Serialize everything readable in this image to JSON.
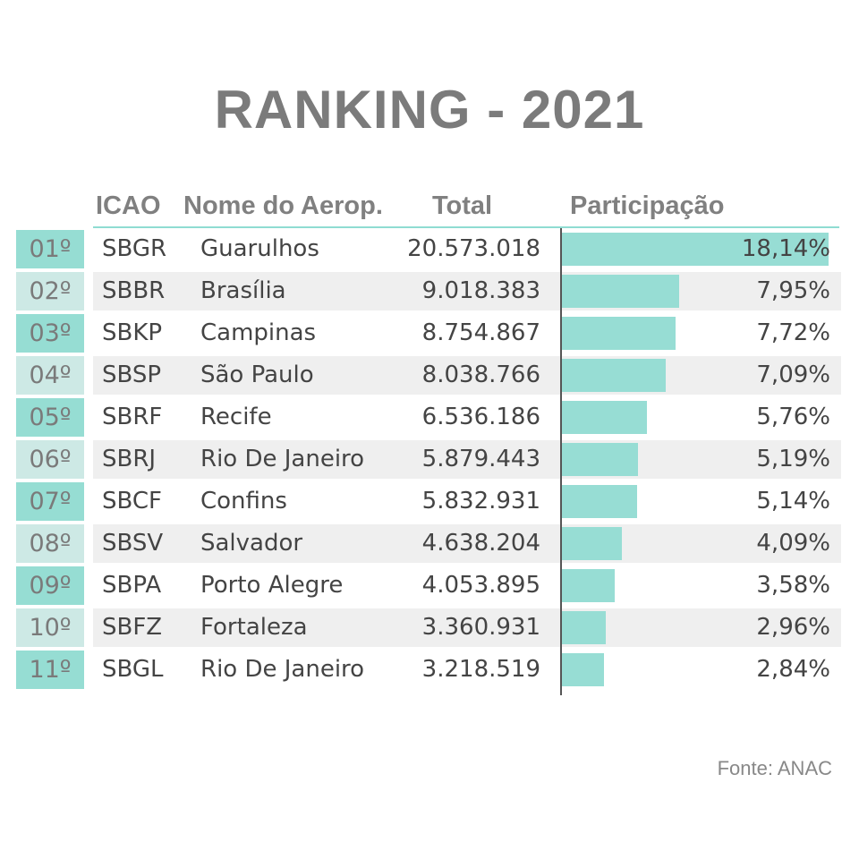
{
  "title": "RANKING - 2021",
  "headers": {
    "icao": "ICAO",
    "name": "Nome do Aerop.",
    "total": "Total",
    "share": "Participação"
  },
  "source": "Fonte: ANAC",
  "colors": {
    "bar": "#97ddd4",
    "rank_odd": "#96ddd3",
    "rank_even": "#cde9e5",
    "row_even": "#efefef",
    "title": "#7b7b7b"
  },
  "chart_data": {
    "type": "bar",
    "orientation": "horizontal",
    "categories": [
      "SBGR",
      "SBBR",
      "SBKP",
      "SBSP",
      "SBRF",
      "SBRJ",
      "SBCF",
      "SBSV",
      "SBPA",
      "SBFZ",
      "SBGL"
    ],
    "values": [
      18.14,
      7.95,
      7.72,
      7.09,
      5.76,
      5.19,
      5.14,
      4.09,
      3.58,
      2.96,
      2.84
    ],
    "xlim": [
      0,
      18.14
    ],
    "grid": false,
    "rows": [
      {
        "rank": "01º",
        "icao": "SBGR",
        "name": "Guarulhos",
        "total": "20.573.018",
        "share_label": "18,14%",
        "share": 18.14
      },
      {
        "rank": "02º",
        "icao": "SBBR",
        "name": "Brasília",
        "total": "9.018.383",
        "share_label": "7,95%",
        "share": 7.95
      },
      {
        "rank": "03º",
        "icao": "SBKP",
        "name": "Campinas",
        "total": "8.754.867",
        "share_label": "7,72%",
        "share": 7.72
      },
      {
        "rank": "04º",
        "icao": "SBSP",
        "name": "São Paulo",
        "total": "8.038.766",
        "share_label": "7,09%",
        "share": 7.09
      },
      {
        "rank": "05º",
        "icao": "SBRF",
        "name": "Recife",
        "total": "6.536.186",
        "share_label": "5,76%",
        "share": 5.76
      },
      {
        "rank": "06º",
        "icao": "SBRJ",
        "name": "Rio De Janeiro",
        "total": "5.879.443",
        "share_label": "5,19%",
        "share": 5.19
      },
      {
        "rank": "07º",
        "icao": "SBCF",
        "name": "Confins",
        "total": "5.832.931",
        "share_label": "5,14%",
        "share": 5.14
      },
      {
        "rank": "08º",
        "icao": "SBSV",
        "name": "Salvador",
        "total": "4.638.204",
        "share_label": "4,09%",
        "share": 4.09
      },
      {
        "rank": "09º",
        "icao": "SBPA",
        "name": "Porto Alegre",
        "total": "4.053.895",
        "share_label": "3,58%",
        "share": 3.58
      },
      {
        "rank": "10º",
        "icao": "SBFZ",
        "name": "Fortaleza",
        "total": "3.360.931",
        "share_label": "2,96%",
        "share": 2.96
      },
      {
        "rank": "11º",
        "icao": "SBGL",
        "name": "Rio De Janeiro",
        "total": "3.218.519",
        "share_label": "2,84%",
        "share": 2.84
      }
    ]
  }
}
